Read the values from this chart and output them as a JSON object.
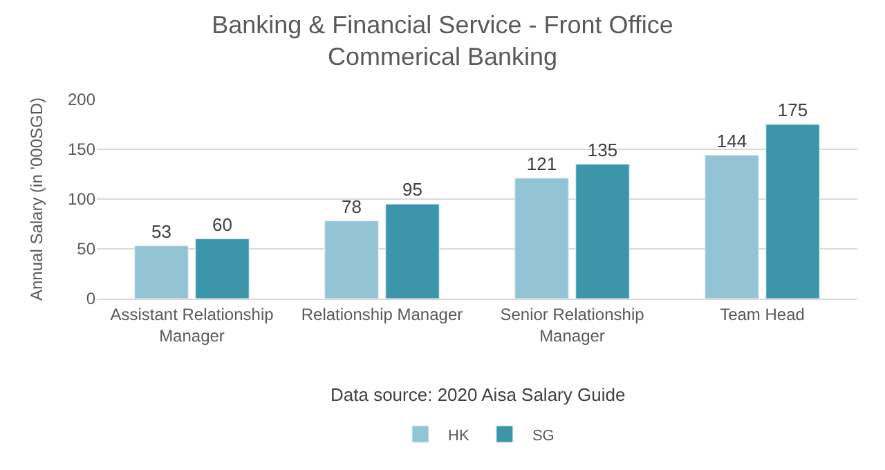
{
  "chart_data": {
    "type": "bar",
    "title": "Banking & Financial Service - Front Office\nCommerical Banking",
    "ylabel": "Annual Salary (in '000SGD)",
    "categories": [
      "Assistant Relationship\nManager",
      "Relationship Manager",
      "Senior Relationship\nManager",
      "Team Head"
    ],
    "series": [
      {
        "name": "HK",
        "color": "#93c4d6",
        "values": [
          53,
          78,
          121,
          144
        ]
      },
      {
        "name": "SG",
        "color": "#3a96a8",
        "values": [
          60,
          95,
          135,
          175
        ]
      }
    ],
    "ylim": [
      0,
      200
    ],
    "yticks": [
      0,
      50,
      100,
      150,
      200
    ],
    "grid": "y",
    "legend": "bottom",
    "data_labels": true,
    "annotations": [
      "Data source: 2020 Aisa Salary Guide"
    ]
  }
}
